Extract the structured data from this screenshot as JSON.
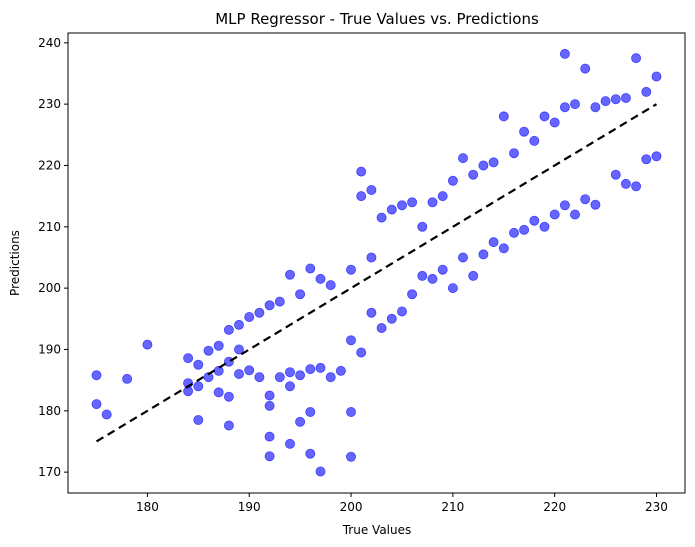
{
  "chart_data": {
    "type": "scatter",
    "title": "MLP Regressor - True Values vs. Predictions",
    "xlabel": "True Values",
    "ylabel": "Predictions",
    "xlim": [
      172.2,
      232.8
    ],
    "ylim": [
      166.6,
      241.6
    ],
    "xticks": [
      180,
      190,
      200,
      210,
      220,
      230
    ],
    "yticks": [
      170,
      180,
      190,
      200,
      210,
      220,
      230,
      240
    ],
    "grid": false,
    "legend": "none",
    "marker_color": "#0000ff",
    "marker_alpha": 0.6,
    "reference_line": {
      "style": "dashed",
      "color": "#000000",
      "x": [
        175,
        230
      ],
      "y": [
        175,
        230
      ]
    },
    "series": [
      {
        "points": [
          [
            175,
            185.8
          ],
          [
            175,
            181.1
          ],
          [
            176,
            179.4
          ],
          [
            178,
            185.2
          ],
          [
            180,
            190.8
          ],
          [
            184,
            188.6
          ],
          [
            184,
            183.2
          ],
          [
            184,
            184.5
          ],
          [
            185,
            187.5
          ],
          [
            185,
            178.5
          ],
          [
            185,
            184.0
          ],
          [
            186,
            189.8
          ],
          [
            186,
            185.5
          ],
          [
            187,
            190.6
          ],
          [
            187,
            183.0
          ],
          [
            187,
            186.5
          ],
          [
            188,
            193.2
          ],
          [
            188,
            182.3
          ],
          [
            188,
            177.6
          ],
          [
            188,
            188.0
          ],
          [
            189,
            194.0
          ],
          [
            189,
            186.0
          ],
          [
            189,
            190.0
          ],
          [
            190,
            195.3
          ],
          [
            190,
            186.6
          ],
          [
            191,
            196.0
          ],
          [
            191,
            185.5
          ],
          [
            192,
            197.2
          ],
          [
            192,
            182.5
          ],
          [
            192,
            180.8
          ],
          [
            192,
            175.8
          ],
          [
            192,
            172.6
          ],
          [
            193,
            197.8
          ],
          [
            193,
            185.5
          ],
          [
            194,
            202.2
          ],
          [
            194,
            184.0
          ],
          [
            194,
            186.3
          ],
          [
            194,
            174.6
          ],
          [
            195,
            199.0
          ],
          [
            195,
            185.8
          ],
          [
            195,
            178.2
          ],
          [
            196,
            203.2
          ],
          [
            196,
            179.8
          ],
          [
            196,
            186.8
          ],
          [
            196,
            173.0
          ],
          [
            197,
            201.5
          ],
          [
            197,
            187.0
          ],
          [
            197,
            170.1
          ],
          [
            198,
            200.5
          ],
          [
            198,
            185.5
          ],
          [
            199,
            186.5
          ],
          [
            200,
            203.0
          ],
          [
            200,
            179.8
          ],
          [
            200,
            172.5
          ],
          [
            200,
            191.5
          ],
          [
            201,
            219.0
          ],
          [
            201,
            215.0
          ],
          [
            201,
            189.5
          ],
          [
            202,
            216.0
          ],
          [
            202,
            205.0
          ],
          [
            202,
            196.0
          ],
          [
            203,
            211.5
          ],
          [
            203,
            193.5
          ],
          [
            204,
            212.8
          ],
          [
            204,
            195.0
          ],
          [
            205,
            213.5
          ],
          [
            205,
            196.2
          ],
          [
            206,
            214.0
          ],
          [
            206,
            199.0
          ],
          [
            207,
            210.0
          ],
          [
            207,
            202.0
          ],
          [
            208,
            214.0
          ],
          [
            208,
            201.5
          ],
          [
            209,
            215.0
          ],
          [
            209,
            203.0
          ],
          [
            210,
            217.5
          ],
          [
            210,
            200.0
          ],
          [
            211,
            221.2
          ],
          [
            211,
            205.0
          ],
          [
            212,
            218.5
          ],
          [
            212,
            202.0
          ],
          [
            213,
            220.0
          ],
          [
            213,
            205.5
          ],
          [
            214,
            220.5
          ],
          [
            214,
            207.5
          ],
          [
            215,
            228.0
          ],
          [
            215,
            206.5
          ],
          [
            216,
            222.0
          ],
          [
            216,
            209.0
          ],
          [
            217,
            225.5
          ],
          [
            217,
            209.5
          ],
          [
            218,
            224.0
          ],
          [
            218,
            211.0
          ],
          [
            219,
            228.0
          ],
          [
            219,
            210.0
          ],
          [
            220,
            227.0
          ],
          [
            220,
            212.0
          ],
          [
            221,
            238.2
          ],
          [
            221,
            229.5
          ],
          [
            221,
            213.5
          ],
          [
            222,
            230.0
          ],
          [
            222,
            212.0
          ],
          [
            223,
            235.8
          ],
          [
            223,
            214.5
          ],
          [
            224,
            229.5
          ],
          [
            224,
            213.6
          ],
          [
            225,
            230.5
          ],
          [
            226,
            230.8
          ],
          [
            226,
            218.5
          ],
          [
            227,
            231.0
          ],
          [
            227,
            217.0
          ],
          [
            228,
            237.5
          ],
          [
            228,
            216.6
          ],
          [
            229,
            232.0
          ],
          [
            229,
            221.0
          ],
          [
            230,
            234.5
          ],
          [
            230,
            221.5
          ]
        ]
      }
    ]
  }
}
